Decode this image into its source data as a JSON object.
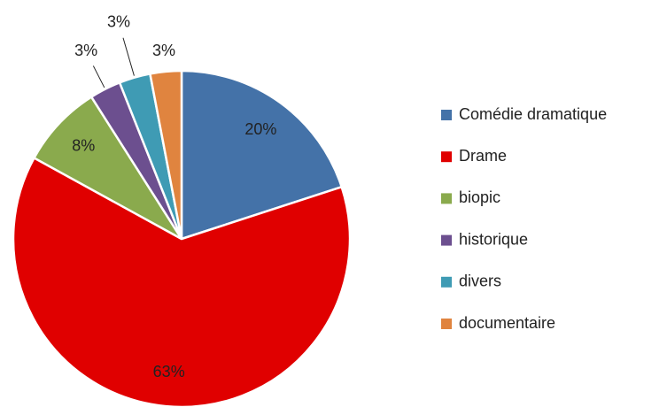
{
  "chart_data": {
    "type": "pie",
    "categories": [
      "Comédie dramatique",
      "Drame",
      "biopic",
      "historique",
      "divers",
      "documentaire"
    ],
    "values": [
      20,
      63,
      8,
      3,
      3,
      3
    ],
    "value_labels": [
      "20%",
      "63%",
      "8%",
      "3%",
      "3%",
      "3%"
    ],
    "colors": [
      "#4472a8",
      "#e00000",
      "#8aaa4d",
      "#6c4f8f",
      "#3f9bb4",
      "#e0843f"
    ],
    "legend": "right"
  }
}
